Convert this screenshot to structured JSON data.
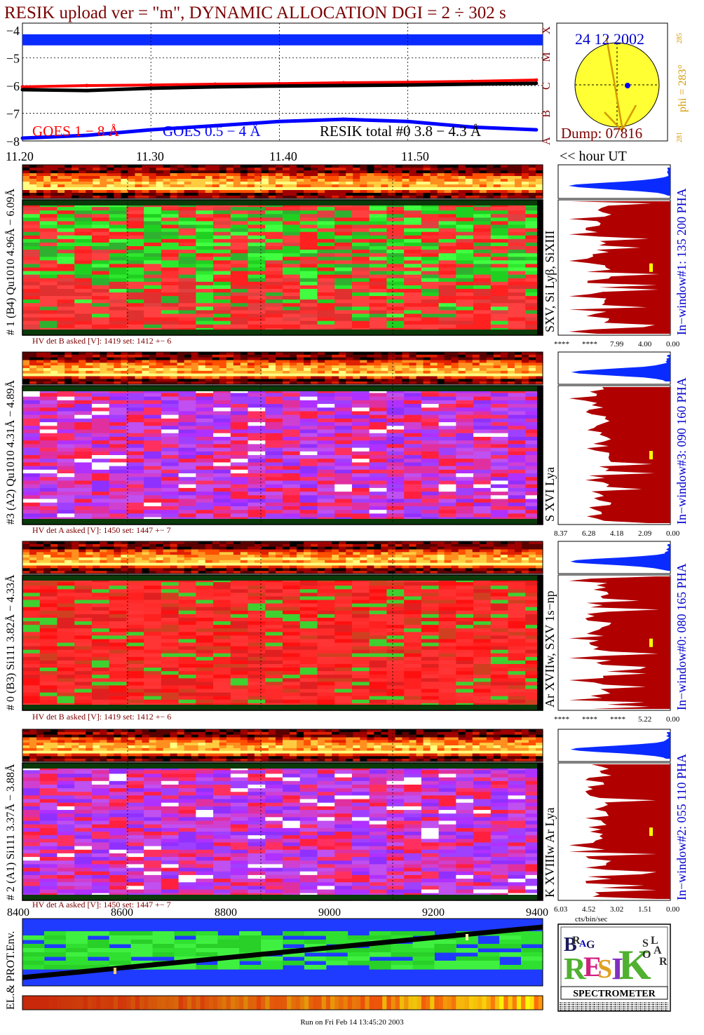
{
  "header": {
    "title": "RESIK upload ver = \"m\", DYNAMIC ALLOCATION  DGI =   2 ÷ 302 s"
  },
  "goes_panel": {
    "yticks": [
      "−4",
      "−5",
      "−6",
      "−7",
      "−8"
    ],
    "class_letters": [
      "X",
      "M",
      "C",
      "B",
      "A"
    ],
    "legend_goes1": "GOES 1 − 8 Å",
    "legend_goes05": "GOES 0.5 − 4 Å",
    "legend_resik": "RESIK total #0  3.8 − 4.3 Å",
    "colors": {
      "goes1": "#ff0000",
      "goes05": "#0000ff",
      "resik": "#000000",
      "band": "#0a2bff"
    }
  },
  "time_axis": {
    "ticks": [
      "11.20",
      "11.30",
      "11.40",
      "11.50"
    ],
    "unit_label": "<< hour UT"
  },
  "orbit_panel": {
    "date": "24 12 2002",
    "phi_label": "phi = 283°",
    "phi_sup": "285",
    "phi_low": "281",
    "dump": "Dump: 07816",
    "colors": {
      "disk": "#ffff33",
      "text_date": "#0000cc",
      "text_dump": "#7a0000",
      "text_phi": "#d49a00"
    }
  },
  "detectors": [
    {
      "side_label": "# 1 (B4) Qu1010 4.96Å − 6.09Å",
      "line_label": "SXV, Si Lyβ, SiXIII",
      "hv_text": "HV det B asked [V]:  1419 set:  1412 +−   6",
      "window_label": "In−window#1:  135 200 PHA",
      "spectrum_ticks": [
        "****",
        "****",
        "7.99",
        "4.00",
        "0.00"
      ],
      "palette": "green"
    },
    {
      "side_label": "#3 (A2) Qu1010  4.31Å − 4.89Å",
      "line_label": "S XVI Lya",
      "hv_text": "HV det A asked [V]:  1450 set:  1447 +−   7",
      "window_label": "In−window#3:  090 160 PHA",
      "spectrum_ticks": [
        "8.37",
        "6.28",
        "4.18",
        "2.09",
        "0.00"
      ],
      "palette": "purple"
    },
    {
      "side_label": "# 0 (B3) Si111  3.82Å − 4.33Å",
      "line_label": "Ar XVIIw, SXV 1s−np",
      "hv_text": "HV det B asked [V]:  1419 set:  1412 +−   6",
      "window_label": "In−window#0:  080 165 PHA",
      "spectrum_ticks": [
        "****",
        "****",
        "****",
        "5.22",
        "0.00"
      ],
      "palette": "red"
    },
    {
      "side_label": "# 2 (A1) Si111  3.37Å − 3.88Å",
      "line_label": "K XVIIIw  Ar Lya",
      "hv_text": "HV det A asked [V]:  1450 set:  1447 +−   7",
      "window_label": "In−window#2:  055 110 PHA",
      "spectrum_ticks": [
        "6.03",
        "4.52",
        "3.02",
        "1.51",
        "0.00"
      ],
      "palette": "purple"
    }
  ],
  "spectrum_xlabel": "cts/bin/sec",
  "bottom_panel": {
    "xticks": [
      "8400",
      "8600",
      "8800",
      "9000",
      "9200",
      "9400"
    ],
    "side_label": "EL.& PROT.Env."
  },
  "logo": {
    "letters": [
      "B",
      "R",
      "A",
      "G",
      "R",
      "E",
      "S",
      "I",
      "K",
      "S",
      "O",
      "L",
      "A",
      "R"
    ],
    "banner": "SPECTROMETER"
  },
  "footer": "Run on Fri Feb 14 13:45:20 2003",
  "chart_data": {
    "type": "line",
    "xlabel": "",
    "ylabel": "",
    "x_ticks": [
      "11.20",
      "11.30",
      "11.40",
      "11.50"
    ],
    "ylim": [
      -8,
      -4
    ],
    "series": [
      {
        "name": "GOES 1 − 8 Å",
        "x": [
          11.2,
          11.25,
          11.3,
          11.35,
          11.4,
          11.45,
          11.5,
          11.55,
          11.6
        ],
        "values": [
          -6.05,
          -6.0,
          -5.98,
          -5.95,
          -5.93,
          -5.9,
          -5.88,
          -5.85,
          -5.8
        ]
      },
      {
        "name": "GOES 0.5 − 4 Å",
        "x": [
          11.2,
          11.25,
          11.3,
          11.35,
          11.4,
          11.45,
          11.5,
          11.55,
          11.6
        ],
        "values": [
          -7.9,
          -7.8,
          -7.6,
          -7.45,
          -7.3,
          -7.22,
          -7.3,
          -7.5,
          -7.6
        ]
      },
      {
        "name": "RESIK total #0  3.8 − 4.3 Å",
        "x": [
          11.2,
          11.25,
          11.3,
          11.35,
          11.4,
          11.45,
          11.5,
          11.55,
          11.6
        ],
        "values": [
          -6.15,
          -6.18,
          -6.1,
          -6.05,
          -6.02,
          -6.0,
          -5.98,
          -5.95,
          -5.92
        ]
      }
    ]
  }
}
